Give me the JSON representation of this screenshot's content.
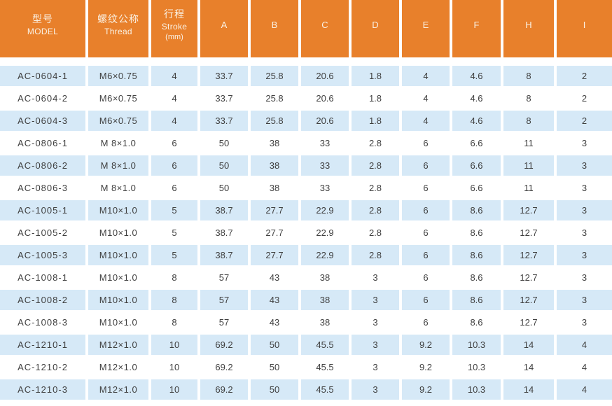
{
  "table": {
    "columns": [
      {
        "key": "model",
        "lines": [
          "型号",
          "MODEL"
        ]
      },
      {
        "key": "thread",
        "lines": [
          "螺纹公称",
          "Thread"
        ]
      },
      {
        "key": "stroke",
        "lines": [
          "行程",
          "Stroke",
          "(mm)"
        ]
      },
      {
        "key": "A",
        "lines": [
          "A"
        ]
      },
      {
        "key": "B",
        "lines": [
          "B"
        ]
      },
      {
        "key": "C",
        "lines": [
          "C"
        ]
      },
      {
        "key": "D",
        "lines": [
          "D"
        ]
      },
      {
        "key": "E",
        "lines": [
          "E"
        ]
      },
      {
        "key": "F",
        "lines": [
          "F"
        ]
      },
      {
        "key": "H",
        "lines": [
          "H"
        ]
      },
      {
        "key": "I",
        "lines": [
          "I"
        ]
      }
    ],
    "rows": [
      [
        "AC-0604-1",
        "M6×0.75",
        "4",
        "33.7",
        "25.8",
        "20.6",
        "1.8",
        "4",
        "4.6",
        "8",
        "2"
      ],
      [
        "AC-0604-2",
        "M6×0.75",
        "4",
        "33.7",
        "25.8",
        "20.6",
        "1.8",
        "4",
        "4.6",
        "8",
        "2"
      ],
      [
        "AC-0604-3",
        "M6×0.75",
        "4",
        "33.7",
        "25.8",
        "20.6",
        "1.8",
        "4",
        "4.6",
        "8",
        "2"
      ],
      [
        "AC-0806-1",
        "M 8×1.0",
        "6",
        "50",
        "38",
        "33",
        "2.8",
        "6",
        "6.6",
        "11",
        "3"
      ],
      [
        "AC-0806-2",
        "M 8×1.0",
        "6",
        "50",
        "38",
        "33",
        "2.8",
        "6",
        "6.6",
        "11",
        "3"
      ],
      [
        "AC-0806-3",
        "M 8×1.0",
        "6",
        "50",
        "38",
        "33",
        "2.8",
        "6",
        "6.6",
        "11",
        "3"
      ],
      [
        "AC-1005-1",
        "M10×1.0",
        "5",
        "38.7",
        "27.7",
        "22.9",
        "2.8",
        "6",
        "8.6",
        "12.7",
        "3"
      ],
      [
        "AC-1005-2",
        "M10×1.0",
        "5",
        "38.7",
        "27.7",
        "22.9",
        "2.8",
        "6",
        "8.6",
        "12.7",
        "3"
      ],
      [
        "AC-1005-3",
        "M10×1.0",
        "5",
        "38.7",
        "27.7",
        "22.9",
        "2.8",
        "6",
        "8.6",
        "12.7",
        "3"
      ],
      [
        "AC-1008-1",
        "M10×1.0",
        "8",
        "57",
        "43",
        "38",
        "3",
        "6",
        "8.6",
        "12.7",
        "3"
      ],
      [
        "AC-1008-2",
        "M10×1.0",
        "8",
        "57",
        "43",
        "38",
        "3",
        "6",
        "8.6",
        "12.7",
        "3"
      ],
      [
        "AC-1008-3",
        "M10×1.0",
        "8",
        "57",
        "43",
        "38",
        "3",
        "6",
        "8.6",
        "12.7",
        "3"
      ],
      [
        "AC-1210-1",
        "M12×1.0",
        "10",
        "69.2",
        "50",
        "45.5",
        "3",
        "9.2",
        "10.3",
        "14",
        "4"
      ],
      [
        "AC-1210-2",
        "M12×1.0",
        "10",
        "69.2",
        "50",
        "45.5",
        "3",
        "9.2",
        "10.3",
        "14",
        "4"
      ],
      [
        "AC-1210-3",
        "M12×1.0",
        "10",
        "69.2",
        "50",
        "45.5",
        "3",
        "9.2",
        "10.3",
        "14",
        "4"
      ]
    ]
  },
  "colors": {
    "header_bg": "#E8802B",
    "header_text": "#FAF1E4",
    "row_alt_bg": "#D6E9F7",
    "row_bg": "#FFFFFF",
    "cell_text": "#3F3F3F",
    "bottom_rule": "#A8A8A8"
  }
}
